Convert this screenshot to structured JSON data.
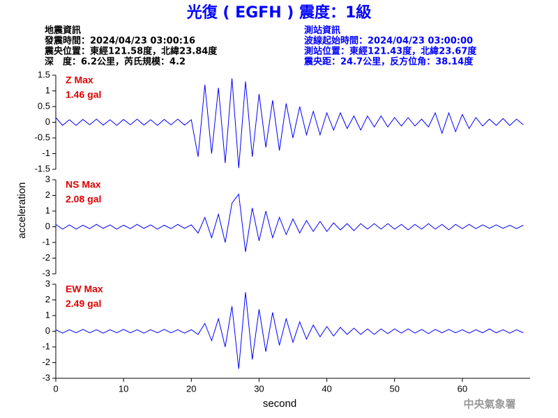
{
  "header": {
    "title": "光復 ( EGFH ) 震度：1級",
    "left": [
      "地震資訊",
      "發震時間：2024/04/23 03:00:16",
      "震央位置：東經121.58度，北緯23.84度",
      "深　度：6.2公里，芮氏規模：4.2"
    ],
    "right": [
      "測站資訊",
      "波線起始時間：2024/04/23 03:00:00",
      "測站位置：東經121.43度，北緯23.67度",
      "震央距：24.7公里，反方位角：38.14度"
    ],
    "xlabel": "second",
    "ylabel": "acceleration",
    "footer": "中央氣象署"
  },
  "chart_data": [
    {
      "type": "line",
      "label": "Z Max",
      "max_label": "1.46 gal",
      "color": "#0000ff",
      "xlim": [
        0,
        70
      ],
      "ylim": [
        -1.5,
        1.5
      ],
      "yticks": [
        -1.5,
        -1,
        -0.5,
        0,
        0.5,
        1,
        1.5
      ],
      "x": [
        0,
        1,
        2,
        3,
        4,
        5,
        6,
        7,
        8,
        9,
        10,
        11,
        12,
        13,
        14,
        15,
        16,
        17,
        18,
        19,
        20,
        21,
        22,
        23,
        24,
        25,
        26,
        27,
        28,
        29,
        30,
        31,
        32,
        33,
        34,
        35,
        36,
        37,
        38,
        39,
        40,
        41,
        42,
        43,
        44,
        45,
        46,
        47,
        48,
        49,
        50,
        51,
        52,
        53,
        54,
        55,
        56,
        57,
        58,
        59,
        60,
        61,
        62,
        63,
        64,
        65,
        66,
        67,
        68,
        69
      ],
      "values": [
        0.15,
        -0.1,
        0.08,
        -0.1,
        0.09,
        -0.08,
        0.1,
        -0.09,
        0.08,
        -0.1,
        0.09,
        -0.08,
        0.1,
        -0.09,
        0.08,
        -0.1,
        0.09,
        -0.08,
        0.1,
        -0.09,
        0.08,
        -1.1,
        1.2,
        -1.0,
        1.1,
        -1.3,
        1.4,
        -1.46,
        1.3,
        -1.1,
        0.9,
        -0.8,
        0.7,
        -0.9,
        0.6,
        -0.5,
        0.5,
        -0.4,
        0.35,
        -0.4,
        0.3,
        -0.25,
        0.3,
        -0.2,
        0.2,
        -0.25,
        0.2,
        -0.15,
        0.2,
        -0.15,
        0.15,
        -0.12,
        0.15,
        -0.12,
        0.1,
        -0.15,
        0.3,
        -0.35,
        0.3,
        -0.3,
        0.25,
        -0.2,
        0.15,
        -0.12,
        0.1,
        -0.1,
        0.12,
        -0.1,
        0.1,
        -0.08
      ]
    },
    {
      "type": "line",
      "label": "NS Max",
      "max_label": "2.08 gal",
      "color": "#0000ff",
      "xlim": [
        0,
        70
      ],
      "ylim": [
        -3,
        3
      ],
      "yticks": [
        -3,
        -2,
        -1,
        0,
        1,
        2,
        3
      ],
      "x": [
        0,
        1,
        2,
        3,
        4,
        5,
        6,
        7,
        8,
        9,
        10,
        11,
        12,
        13,
        14,
        15,
        16,
        17,
        18,
        19,
        20,
        21,
        22,
        23,
        24,
        25,
        26,
        27,
        28,
        29,
        30,
        31,
        32,
        33,
        34,
        35,
        36,
        37,
        38,
        39,
        40,
        41,
        42,
        43,
        44,
        45,
        46,
        47,
        48,
        49,
        50,
        51,
        52,
        53,
        54,
        55,
        56,
        57,
        58,
        59,
        60,
        61,
        62,
        63,
        64,
        65,
        66,
        67,
        68,
        69
      ],
      "values": [
        0.15,
        -0.15,
        0.12,
        -0.15,
        0.1,
        -0.12,
        0.15,
        -0.1,
        0.12,
        -0.15,
        0.1,
        -0.12,
        0.15,
        -0.1,
        0.12,
        -0.15,
        0.1,
        -0.12,
        0.15,
        -0.1,
        0.12,
        -0.4,
        0.6,
        -0.7,
        0.8,
        -1.0,
        1.5,
        2.08,
        -1.6,
        1.2,
        -0.9,
        1.0,
        -0.7,
        0.6,
        -0.5,
        0.5,
        -0.4,
        0.4,
        -0.3,
        0.35,
        -0.3,
        0.25,
        -0.2,
        0.2,
        -0.25,
        0.2,
        -0.15,
        0.2,
        -0.15,
        0.2,
        -0.15,
        0.15,
        -0.2,
        0.15,
        -0.15,
        0.2,
        -0.15,
        0.15,
        -0.2,
        0.15,
        -0.12,
        0.15,
        -0.12,
        0.12,
        -0.1,
        0.12,
        -0.1,
        0.1,
        -0.12,
        0.1
      ]
    },
    {
      "type": "line",
      "label": "EW Max",
      "max_label": "2.49 gal",
      "color": "#0000ff",
      "xlim": [
        0,
        70
      ],
      "ylim": [
        -3,
        3
      ],
      "yticks": [
        -3,
        -2,
        -1,
        0,
        1,
        2,
        3
      ],
      "xticks": [
        0,
        10,
        20,
        30,
        40,
        50,
        60
      ],
      "x": [
        0,
        1,
        2,
        3,
        4,
        5,
        6,
        7,
        8,
        9,
        10,
        11,
        12,
        13,
        14,
        15,
        16,
        17,
        18,
        19,
        20,
        21,
        22,
        23,
        24,
        25,
        26,
        27,
        28,
        29,
        30,
        31,
        32,
        33,
        34,
        35,
        36,
        37,
        38,
        39,
        40,
        41,
        42,
        43,
        44,
        45,
        46,
        47,
        48,
        49,
        50,
        51,
        52,
        53,
        54,
        55,
        56,
        57,
        58,
        59,
        60,
        61,
        62,
        63,
        64,
        65,
        66,
        67,
        68,
        69
      ],
      "values": [
        0.1,
        -0.12,
        0.1,
        -0.1,
        0.12,
        -0.1,
        0.1,
        -0.12,
        0.1,
        -0.1,
        0.12,
        -0.1,
        0.1,
        -0.12,
        0.1,
        -0.1,
        0.12,
        -0.1,
        0.1,
        -0.12,
        0.1,
        -0.2,
        0.5,
        -0.6,
        0.8,
        -1.0,
        1.6,
        -2.4,
        2.49,
        -1.8,
        1.4,
        -1.3,
        1.2,
        -0.9,
        0.8,
        -0.7,
        0.6,
        -0.5,
        0.4,
        -0.35,
        0.3,
        -0.3,
        0.25,
        -0.2,
        0.2,
        -0.2,
        0.15,
        -0.2,
        0.15,
        -0.15,
        0.15,
        -0.12,
        0.15,
        -0.12,
        0.12,
        -0.15,
        0.12,
        -0.1,
        0.12,
        -0.1,
        0.1,
        -0.12,
        0.1,
        -0.1,
        0.15,
        -0.1,
        0.1,
        -0.12,
        0.1,
        -0.1
      ]
    }
  ]
}
